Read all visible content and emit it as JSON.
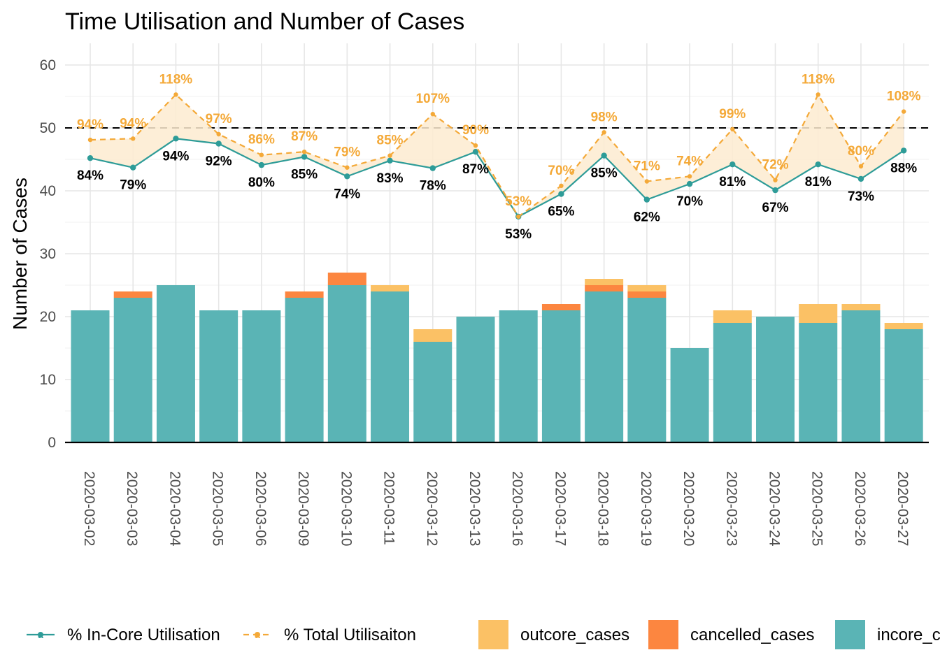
{
  "chart_data": {
    "type": "bar",
    "title": "Time Utilisation and Number of Cases",
    "xlabel": "",
    "ylabel": "Number of Cases",
    "ylim": [
      0,
      62
    ],
    "yticks": [
      0,
      10,
      20,
      30,
      40,
      50,
      60
    ],
    "reference_line": 50,
    "grid": true,
    "legend_position": "bottom",
    "categories": [
      "2020-03-02",
      "2020-03-03",
      "2020-03-04",
      "2020-03-05",
      "2020-03-06",
      "2020-03-09",
      "2020-03-10",
      "2020-03-11",
      "2020-03-12",
      "2020-03-13",
      "2020-03-16",
      "2020-03-17",
      "2020-03-18",
      "2020-03-19",
      "2020-03-20",
      "2020-03-23",
      "2020-03-24",
      "2020-03-25",
      "2020-03-26",
      "2020-03-27"
    ],
    "bar_series": [
      {
        "name": "incore_cases",
        "color": "#5AB4B5",
        "values": [
          21,
          23,
          25,
          21,
          21,
          23,
          25,
          24,
          16,
          20,
          21,
          21,
          24,
          23,
          15,
          19,
          20,
          19,
          21,
          18
        ]
      },
      {
        "name": "cancelled_cases",
        "color": "#FC8640",
        "values": [
          0,
          1,
          0,
          0,
          0,
          1,
          2,
          0,
          0,
          0,
          0,
          1,
          1,
          1,
          0,
          0,
          0,
          0,
          0,
          0
        ]
      },
      {
        "name": "outcore_cases",
        "color": "#FBC165",
        "values": [
          0,
          0,
          0,
          0,
          0,
          0,
          0,
          1,
          2,
          0,
          0,
          0,
          1,
          1,
          0,
          2,
          0,
          3,
          1,
          1
        ]
      }
    ],
    "line_series": [
      {
        "name": "% In-Core Utilisation",
        "color": "#2E9C98",
        "dash": "solid",
        "values": [
          45.2,
          43.7,
          48.3,
          47.5,
          44.1,
          45.4,
          42.3,
          44.8,
          43.6,
          46.2,
          35.9,
          39.5,
          45.6,
          38.6,
          41.1,
          44.2,
          40.1,
          44.2,
          41.9,
          46.4
        ],
        "labels": [
          "84%",
          "79%",
          "94%",
          "92%",
          "80%",
          "85%",
          "74%",
          "83%",
          "78%",
          "87%",
          "53%",
          "65%",
          "85%",
          "62%",
          "70%",
          "81%",
          "67%",
          "81%",
          "73%",
          "88%"
        ]
      },
      {
        "name": "% Total Utilisaiton",
        "color": "#F4A938",
        "dash": "dashed",
        "values": [
          48.1,
          48.3,
          55.3,
          49.0,
          45.7,
          46.2,
          43.7,
          45.6,
          52.2,
          47.2,
          35.9,
          40.8,
          49.3,
          41.5,
          42.3,
          49.8,
          41.7,
          55.3,
          43.9,
          52.6
        ],
        "labels": [
          "94%",
          "94%",
          "118%",
          "97%",
          "86%",
          "87%",
          "79%",
          "85%",
          "107%",
          "90%",
          "53%",
          "70%",
          "98%",
          "71%",
          "74%",
          "99%",
          "72%",
          "118%",
          "80%",
          "108%"
        ]
      }
    ],
    "ribbon_color": "#FDEBD0"
  },
  "legend": {
    "items": [
      {
        "name": "% In-Core Utilisation",
        "kind": "line",
        "color": "#2E9C98",
        "key_letter": "a"
      },
      {
        "name": "% Total Utilisaiton",
        "kind": "line",
        "color": "#F4A938",
        "key_letter": "a"
      },
      {
        "name": "outcore_cases",
        "kind": "box",
        "color": "#FBC165"
      },
      {
        "name": "cancelled_cases",
        "kind": "box",
        "color": "#FC8640"
      },
      {
        "name": "incore_cases",
        "kind": "box",
        "color": "#5AB4B5"
      }
    ]
  }
}
